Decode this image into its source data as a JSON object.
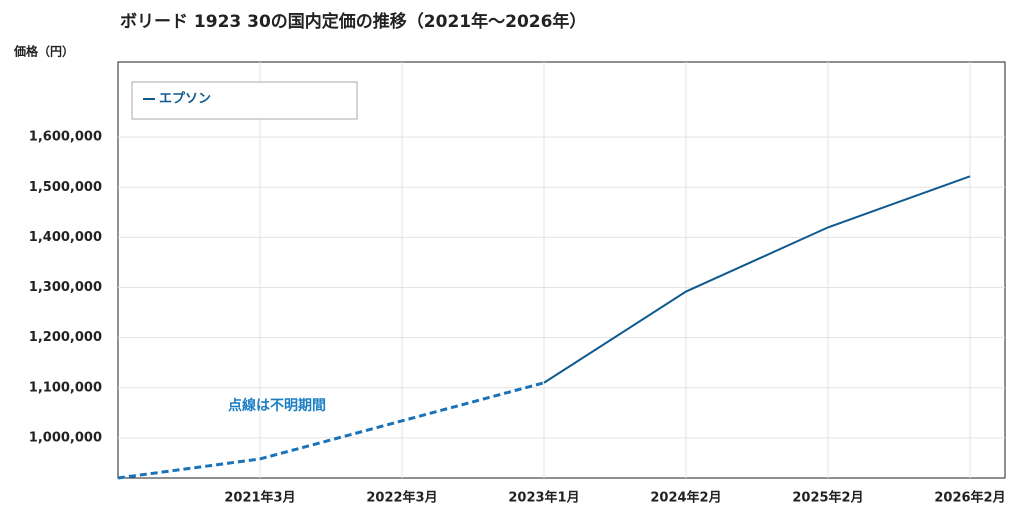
{
  "chart_data": {
    "type": "line",
    "title": "ボリード 1923 30の国内定価の推移（2021年～2026年）",
    "y_label": "価格（円）",
    "annotation": "点線は不明期間",
    "categories": [
      null,
      "2021年3月",
      "2022年3月",
      "2023年1月",
      "2024年2月",
      "2025年2月",
      "2026年2月"
    ],
    "series": [
      {
        "name": "エプソン",
        "color": "#0f5a8f",
        "values": [
          920000,
          958000,
          1034000,
          1110000,
          1292000,
          1420000,
          1522000
        ]
      }
    ],
    "dashed_until": 3,
    "ylim": [
      920000,
      1750000
    ],
    "yticks": [
      {
        "value": 1000000,
        "label": "1,000,000"
      },
      {
        "value": 1100000,
        "label": "1,100,000"
      },
      {
        "value": 1200000,
        "label": "1,200,000"
      },
      {
        "value": 1300000,
        "label": "1,300,000"
      },
      {
        "value": 1400000,
        "label": "1,400,000"
      },
      {
        "value": 1500000,
        "label": "1,500,000"
      },
      {
        "value": 1600000,
        "label": "1,600,000"
      }
    ],
    "grid": true,
    "legend": "upper-left"
  }
}
